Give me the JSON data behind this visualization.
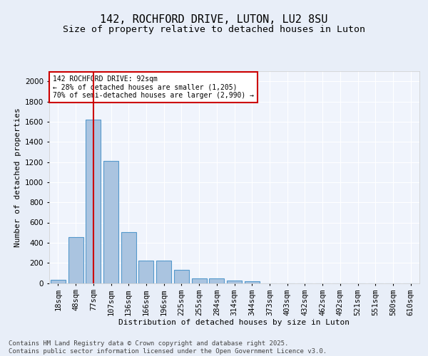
{
  "title": "142, ROCHFORD DRIVE, LUTON, LU2 8SU",
  "subtitle": "Size of property relative to detached houses in Luton",
  "xlabel": "Distribution of detached houses by size in Luton",
  "ylabel": "Number of detached properties",
  "categories": [
    "18sqm",
    "48sqm",
    "77sqm",
    "107sqm",
    "136sqm",
    "166sqm",
    "196sqm",
    "225sqm",
    "255sqm",
    "284sqm",
    "314sqm",
    "344sqm",
    "373sqm",
    "403sqm",
    "432sqm",
    "462sqm",
    "492sqm",
    "521sqm",
    "551sqm",
    "580sqm",
    "610sqm"
  ],
  "values": [
    35,
    455,
    1620,
    1210,
    505,
    220,
    220,
    130,
    45,
    45,
    25,
    15,
    0,
    0,
    0,
    0,
    0,
    0,
    0,
    0,
    0
  ],
  "bar_color": "#aac4e0",
  "bar_edge_color": "#5599cc",
  "vline_x": 2,
  "vline_color": "#cc0000",
  "annotation_text": "142 ROCHFORD DRIVE: 92sqm\n← 28% of detached houses are smaller (1,205)\n70% of semi-detached houses are larger (2,990) →",
  "annotation_box_color": "#ffffff",
  "annotation_box_edge": "#cc0000",
  "bg_color": "#e8eef8",
  "plot_bg_color": "#f0f4fc",
  "footer": "Contains HM Land Registry data © Crown copyright and database right 2025.\nContains public sector information licensed under the Open Government Licence v3.0.",
  "ylim": [
    0,
    2100
  ],
  "yticks": [
    0,
    200,
    400,
    600,
    800,
    1000,
    1200,
    1400,
    1600,
    1800,
    2000
  ],
  "title_fontsize": 11,
  "subtitle_fontsize": 9.5,
  "axis_label_fontsize": 8,
  "tick_fontsize": 7.5,
  "footer_fontsize": 6.5,
  "annotation_fontsize": 7
}
